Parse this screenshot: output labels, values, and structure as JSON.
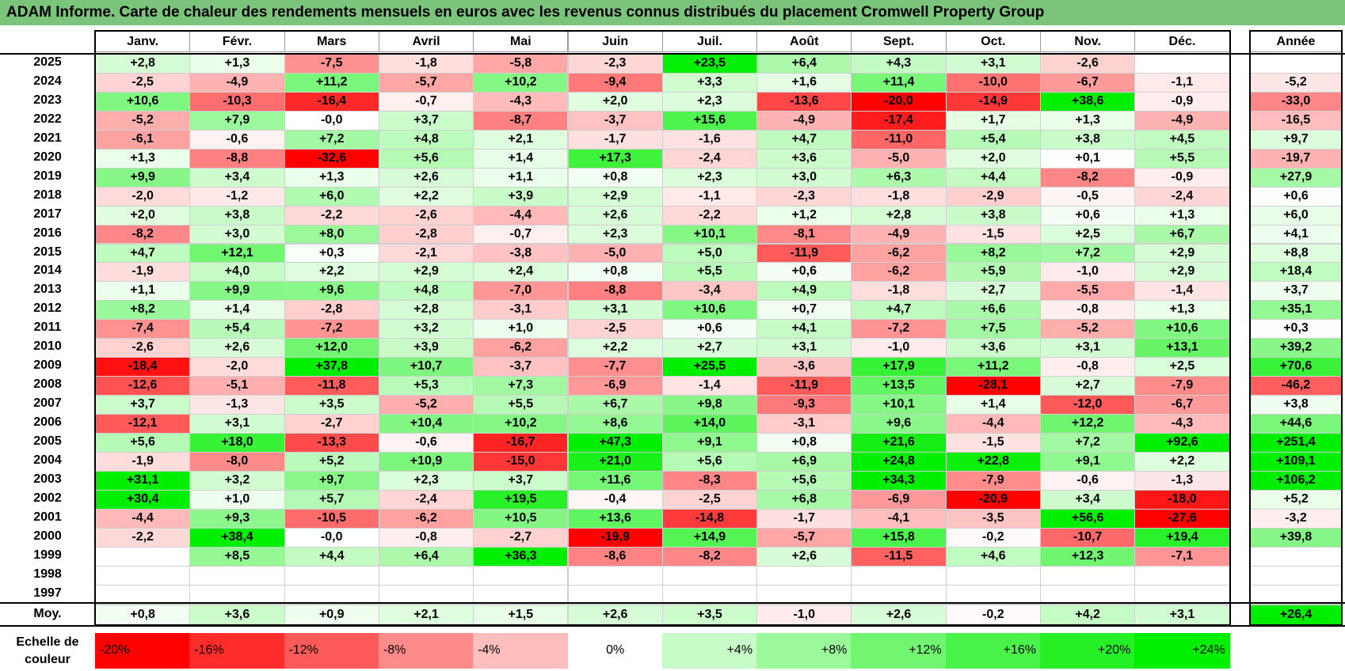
{
  "title": "ADAM Informe. Carte de chaleur des rendements mensuels en euros avec les revenus connus distribués du placement Cromwell Property Group",
  "chart_data": {
    "type": "heatmap",
    "title": "ADAM Informe. Carte de chaleur des rendements mensuels en euros avec les revenus connus distribués du placement Cromwell Property Group",
    "months": [
      "Janv.",
      "Févr.",
      "Mars",
      "Avril",
      "Mai",
      "Juin",
      "Juil.",
      "Août",
      "Sept.",
      "Oct.",
      "Nov.",
      "Déc."
    ],
    "year_header": "Année",
    "rows": [
      {
        "year": "2025",
        "values": [
          "+2,8",
          "+1,3",
          "-7,5",
          "-1,8",
          "-5,8",
          "-2,3",
          "+23,5",
          "+6,4",
          "+4,3",
          "+3,1",
          "-2,6",
          ""
        ],
        "annual": ""
      },
      {
        "year": "2024",
        "values": [
          "-2,5",
          "-4,9",
          "+11,2",
          "-5,7",
          "+10,2",
          "-9,4",
          "+3,3",
          "+1,6",
          "+11,4",
          "-10,0",
          "-6,7",
          "-1,1"
        ],
        "annual": "-5,2"
      },
      {
        "year": "2023",
        "values": [
          "+10,6",
          "-10,3",
          "-16,4",
          "-0,7",
          "-4,3",
          "+2,0",
          "+2,3",
          "-13,6",
          "-20,0",
          "-14,9",
          "+38,6",
          "-0,9"
        ],
        "annual": "-33,0"
      },
      {
        "year": "2022",
        "values": [
          "-5,2",
          "+7,9",
          "-0,0",
          "+3,7",
          "-8,7",
          "-3,7",
          "+15,6",
          "-4,9",
          "-17,4",
          "+1,7",
          "+1,3",
          "-4,9"
        ],
        "annual": "-16,5"
      },
      {
        "year": "2021",
        "values": [
          "-6,1",
          "-0,6",
          "+7,2",
          "+4,8",
          "+2,1",
          "-1,7",
          "-1,6",
          "+4,7",
          "-11,0",
          "+5,4",
          "+3,8",
          "+4,5"
        ],
        "annual": "+9,7"
      },
      {
        "year": "2020",
        "values": [
          "+1,3",
          "-8,8",
          "-32,6",
          "+5,6",
          "+1,4",
          "+17,3",
          "-2,4",
          "+3,6",
          "-5,0",
          "+2,0",
          "+0,1",
          "+5,5"
        ],
        "annual": "-19,7"
      },
      {
        "year": "2019",
        "values": [
          "+9,9",
          "+3,4",
          "+1,3",
          "+2,6",
          "+1,1",
          "+0,8",
          "+2,3",
          "+3,0",
          "+6,3",
          "+4,4",
          "-8,2",
          "-0,9"
        ],
        "annual": "+27,9"
      },
      {
        "year": "2018",
        "values": [
          "-2,0",
          "-1,2",
          "+6,0",
          "+2,2",
          "+3,9",
          "+2,9",
          "-1,1",
          "-2,3",
          "-1,8",
          "-2,9",
          "-0,5",
          "-2,4"
        ],
        "annual": "+0,6"
      },
      {
        "year": "2017",
        "values": [
          "+2,0",
          "+3,8",
          "-2,2",
          "-2,6",
          "-4,4",
          "+2,6",
          "-2,2",
          "+1,2",
          "+2,8",
          "+3,8",
          "+0,6",
          "+1,3"
        ],
        "annual": "+6,0"
      },
      {
        "year": "2016",
        "values": [
          "-8,2",
          "+3,0",
          "+8,0",
          "-2,8",
          "-0,7",
          "+2,3",
          "+10,1",
          "-8,1",
          "-4,9",
          "-1,5",
          "+2,5",
          "+6,7"
        ],
        "annual": "+4,1"
      },
      {
        "year": "2015",
        "values": [
          "+4,7",
          "+12,1",
          "+0,3",
          "-2,1",
          "-3,8",
          "-5,0",
          "+5,0",
          "-11,9",
          "-6,2",
          "+8,2",
          "+7,2",
          "+2,9"
        ],
        "annual": "+8,8"
      },
      {
        "year": "2014",
        "values": [
          "-1,9",
          "+4,0",
          "+2,2",
          "+2,9",
          "+2,4",
          "+0,8",
          "+5,5",
          "+0,6",
          "-6,2",
          "+5,9",
          "-1,0",
          "+2,9"
        ],
        "annual": "+18,4"
      },
      {
        "year": "2013",
        "values": [
          "+1,1",
          "+9,9",
          "+9,6",
          "+4,8",
          "-7,0",
          "-8,8",
          "-3,4",
          "+4,9",
          "-1,8",
          "+2,7",
          "-5,5",
          "-1,4"
        ],
        "annual": "+3,7"
      },
      {
        "year": "2012",
        "values": [
          "+8,2",
          "+1,4",
          "-2,8",
          "+2,8",
          "-3,1",
          "+3,1",
          "+10,6",
          "+0,7",
          "+4,7",
          "+6,6",
          "-0,8",
          "+1,3"
        ],
        "annual": "+35,1"
      },
      {
        "year": "2011",
        "values": [
          "-7,4",
          "+5,4",
          "-7,2",
          "+3,2",
          "+1,0",
          "-2,5",
          "+0,6",
          "+4,1",
          "-7,2",
          "+7,5",
          "-5,2",
          "+10,6"
        ],
        "annual": "+0,3"
      },
      {
        "year": "2010",
        "values": [
          "-2,6",
          "+2,6",
          "+12,0",
          "+3,9",
          "-6,2",
          "+2,2",
          "+2,7",
          "+3,1",
          "-1,0",
          "+3,6",
          "+3,1",
          "+13,1"
        ],
        "annual": "+39,2"
      },
      {
        "year": "2009",
        "values": [
          "-18,4",
          "-2,0",
          "+37,8",
          "+10,7",
          "-3,7",
          "-7,7",
          "+25,5",
          "-3,6",
          "+17,9",
          "+11,2",
          "-0,8",
          "+2,5"
        ],
        "annual": "+70,6"
      },
      {
        "year": "2008",
        "values": [
          "-12,6",
          "-5,1",
          "-11,8",
          "+5,3",
          "+7,3",
          "-6,9",
          "-1,4",
          "-11,9",
          "+13,5",
          "-28,1",
          "+2,7",
          "-7,9"
        ],
        "annual": "-46,2"
      },
      {
        "year": "2007",
        "values": [
          "+3,7",
          "-1,3",
          "+3,5",
          "-5,2",
          "+5,5",
          "+6,7",
          "+9,8",
          "-9,3",
          "+10,1",
          "+1,4",
          "-12,0",
          "-6,7"
        ],
        "annual": "+3,8"
      },
      {
        "year": "2006",
        "values": [
          "-12,1",
          "+3,1",
          "-2,7",
          "+10,4",
          "+10,2",
          "+8,6",
          "+14,0",
          "-3,1",
          "+9,6",
          "-4,4",
          "+12,2",
          "-4,3"
        ],
        "annual": "+44,6"
      },
      {
        "year": "2005",
        "values": [
          "+5,6",
          "+18,0",
          "-13,3",
          "-0,6",
          "-16,7",
          "+47,3",
          "+9,1",
          "+0,8",
          "+21,6",
          "-1,5",
          "+7,2",
          "+92,6"
        ],
        "annual": "+251,4"
      },
      {
        "year": "2004",
        "values": [
          "-1,9",
          "-8,0",
          "+5,2",
          "+10,9",
          "-15,0",
          "+21,0",
          "+5,6",
          "+6,9",
          "+24,8",
          "+22,8",
          "+9,1",
          "+2,2"
        ],
        "annual": "+109,1"
      },
      {
        "year": "2003",
        "values": [
          "+31,1",
          "+3,2",
          "+9,7",
          "+2,3",
          "+3,7",
          "+11,6",
          "-8,3",
          "+5,6",
          "+34,3",
          "-7,9",
          "-0,6",
          "-1,3"
        ],
        "annual": "+106,2"
      },
      {
        "year": "2002",
        "values": [
          "+30,4",
          "+1,0",
          "+5,7",
          "-2,4",
          "+19,5",
          "-0,4",
          "-2,5",
          "+6,8",
          "-6,9",
          "-20,9",
          "+3,4",
          "-18,0"
        ],
        "annual": "+5,2"
      },
      {
        "year": "2001",
        "values": [
          "-4,4",
          "+9,3",
          "-10,5",
          "-6,2",
          "+10,5",
          "+13,6",
          "-14,8",
          "-1,7",
          "-4,1",
          "-3,5",
          "+56,6",
          "-27,6"
        ],
        "annual": "-3,2"
      },
      {
        "year": "2000",
        "values": [
          "-2,2",
          "+38,4",
          "-0,0",
          "-0,8",
          "-2,7",
          "-19,9",
          "+14,9",
          "-5,7",
          "+15,8",
          "-0,2",
          "-10,7",
          "+19,4"
        ],
        "annual": "+39,8"
      },
      {
        "year": "1999",
        "values": [
          "",
          "+8,5",
          "+4,4",
          "+6,4",
          "+36,3",
          "-8,6",
          "-8,2",
          "+2,6",
          "-11,5",
          "+4,6",
          "+12,3",
          "-7,1"
        ],
        "annual": ""
      },
      {
        "year": "1998",
        "values": [
          "",
          "",
          "",
          "",
          "",
          "",
          "",
          "",
          "",
          "",
          "",
          ""
        ],
        "annual": ""
      },
      {
        "year": "1997",
        "values": [
          "",
          "",
          "",
          "",
          "",
          "",
          "",
          "",
          "",
          "",
          "",
          ""
        ],
        "annual": ""
      }
    ],
    "average": {
      "label": "Moy.",
      "values": [
        "+0,8",
        "+3,6",
        "+0,9",
        "+2,1",
        "+1,5",
        "+2,6",
        "+3,5",
        "-1,0",
        "+2,6",
        "-0,2",
        "+4,2",
        "+3,1"
      ],
      "annual": "+26,4"
    },
    "scale": {
      "label": "Echelle de couleur",
      "stops": [
        {
          "text": "-20%",
          "value": -20
        },
        {
          "text": "-16%",
          "value": -16
        },
        {
          "text": "-12%",
          "value": -12
        },
        {
          "text": "-8%",
          "value": -8
        },
        {
          "text": "-4%",
          "value": -4
        },
        {
          "text": "0%",
          "value": 0
        },
        {
          "text": "+4%",
          "value": 4
        },
        {
          "text": "+8%",
          "value": 8
        },
        {
          "text": "+12%",
          "value": 12
        },
        {
          "text": "+16%",
          "value": 16
        },
        {
          "text": "+20%",
          "value": 20
        },
        {
          "text": "+24%",
          "value": 24
        }
      ]
    },
    "colors": {
      "negative_max": "#ff0000",
      "positive_max": "#00ee00",
      "neutral": "#ffffff",
      "title_bar": "#7bc47b"
    }
  }
}
